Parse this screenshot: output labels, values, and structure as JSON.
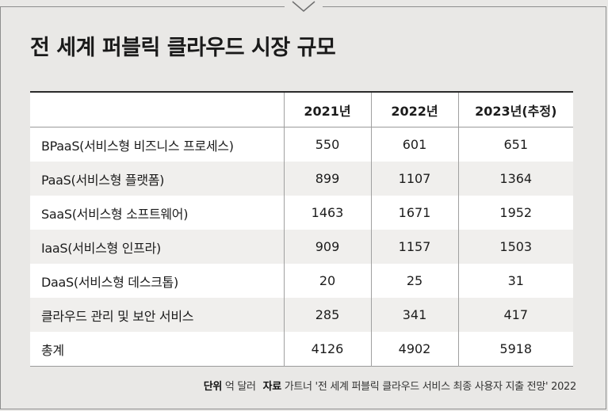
{
  "title": "전 세계 퍼블릭 클라우드 시장 규모",
  "chart_data": {
    "type": "table",
    "columns": [
      "2021년",
      "2022년",
      "2023년(추정)"
    ],
    "rows": [
      {
        "label": "BPaaS(서비스형 비즈니스 프로세스)",
        "values": [
          "550",
          "601",
          "651"
        ]
      },
      {
        "label": "PaaS(서비스형 플랫폼)",
        "values": [
          "899",
          "1107",
          "1364"
        ]
      },
      {
        "label": "SaaS(서비스형 소프트웨어)",
        "values": [
          "1463",
          "1671",
          "1952"
        ]
      },
      {
        "label": "IaaS(서비스형 인프라)",
        "values": [
          "909",
          "1157",
          "1503"
        ]
      },
      {
        "label": "DaaS(서비스형 데스크톱)",
        "values": [
          "20",
          "25",
          "31"
        ]
      },
      {
        "label": "클라우드 관리 및 보안 서비스",
        "values": [
          "285",
          "341",
          "417"
        ]
      },
      {
        "label": "총계",
        "values": [
          "4126",
          "4902",
          "5918"
        ]
      }
    ]
  },
  "footer": {
    "unit_label": "단위",
    "unit": "억 달러",
    "source_label": "자료",
    "source": "가트너 '전 세계 퍼블릭 클라우드 서비스 최종 사용자 지출 전망' 2022"
  },
  "colors": {
    "background": "#e9e8e6",
    "row_alt": "#f0efed",
    "row": "#ffffff",
    "rule": "#2a2a2a"
  }
}
